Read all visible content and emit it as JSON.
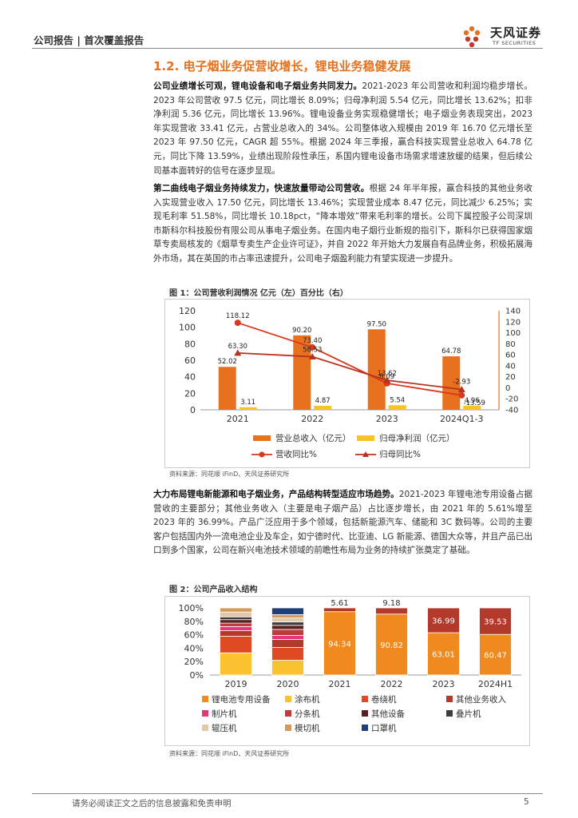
{
  "header": {
    "left": "公司报告 | 首次覆盖报告",
    "logo_cn": "天风证券",
    "logo_en": "TF SECURITIES"
  },
  "section_title": "1.2. 电子烟业务促营收增长，锂电业务稳健发展",
  "para1": {
    "lead": "公司业绩增长可观，锂电设备和电子烟业务共同发力。",
    "text": "2021-2023 年公司营收和利润均稳步增长。2023 年公司营收 97.5 亿元，同比增长 8.09%；归母净利润 5.54 亿元，同比增长 13.62%；扣非净利润 5.36 亿元，同比增长 13.96%。锂电设备业务实现稳健增长；电子烟业务表现突出，2023 年实现营收 33.41 亿元，占营业总收入的 34%。公司整体收入规模由 2019 年 16.70 亿元增长至 2023 年 97.50 亿元，CAGR 超 55%。根据 2024 年三季报，赢合科技实现营业总收入 64.78 亿元，同比下降 13.59%，业绩出现阶段性承压，系国内锂电设备市场需求增速放缓的结果，但后续公司基本面转好的信号在逐步显现。"
  },
  "para2": {
    "lead": "第二曲线电子烟业务持续发力，快速放量带动公司营收。",
    "text": "根据 24 年半年报，赢合科技的其他业务收入实现营业收入 17.50 亿元，同比增长 13.46%；实现营业成本 8.47 亿元，同比减少 6.25%；实现毛利率 51.58%，同比增长 10.18pct，“降本增效”带来毛利率的增长。公司下属控股子公司深圳市斯科尔科技股份有限公司从事电子烟业务。在国内电子烟行业新规的指引下，斯科尔已获得国家烟草专卖局核发的《烟草专卖生产企业许可证》，并自 2022 年开始大力发展自有品牌业务，积极拓展海外市场，其在英国的市占率迅速提升，公司电子烟盈利能力有望实现进一步提升。"
  },
  "fig1": {
    "title": "图 1：公司营收利润情况  亿元（左）百分比（右）",
    "source": "资料来源：同花顺 iFinD、天风证券研究所"
  },
  "para3": {
    "lead": "大力布局锂电新能源和电子烟业务，产品结构转型适应市场趋势。",
    "text": "2021-2023 年锂电池专用设备占据营收的主要部分；其他业务收入（主要是电子烟产品）占比逐步增长，由 2021 年的 5.61%增至 2023 年的 36.99%。产品广泛应用于多个领域，包括新能源汽车、储能和 3C 数码等。公司的主要客户包括国内外一流电池企业及车企，如宁德时代、比亚迪、LG 新能源、德国大众等，并且产品已出口到多个国家，公司在新兴电池技术领域的前瞻性布局为业务的持续扩张奠定了基础。"
  },
  "fig2": {
    "title": "图 2：公司产品收入结构",
    "source": "资料来源：同花顺 iFinD、天风证券研究所"
  },
  "chart_data": [
    {
      "type": "bar",
      "categories": [
        "2021",
        "2022",
        "2023",
        "2024Q1-3"
      ],
      "series": [
        {
          "name": "营业总收入（亿元）",
          "kind": "bar",
          "axis": "left",
          "color": "#e8711f",
          "values": [
            52.02,
            90.2,
            97.5,
            64.78
          ]
        },
        {
          "name": "归母净利润（亿元）",
          "kind": "bar",
          "axis": "left",
          "color": "#f7c325",
          "values": [
            3.11,
            4.87,
            5.54,
            4.96
          ]
        },
        {
          "name": "营收同比%",
          "kind": "line",
          "axis": "right",
          "color": "#d9391f",
          "marker": "circle",
          "values": [
            118.12,
            73.4,
            8.09,
            -13.59
          ]
        },
        {
          "name": "归母同比%",
          "kind": "line",
          "axis": "right",
          "color": "#b6341f",
          "marker": "triangle",
          "values": [
            63.3,
            56.53,
            13.62,
            -2.93
          ]
        }
      ],
      "y_left": {
        "min": 0,
        "max": 120,
        "ticks": [
          "0",
          "20",
          "40",
          "60",
          "80",
          "100",
          "120"
        ]
      },
      "y_right": {
        "min": -40,
        "max": 140,
        "ticks": [
          "-40",
          "-20",
          "0",
          "20",
          "40",
          "60",
          "80",
          "100",
          "120",
          "140"
        ]
      },
      "legend": "bottom"
    },
    {
      "type": "bar",
      "stacked": true,
      "percent": true,
      "categories": [
        "2019",
        "2020",
        "2021",
        "2022",
        "2023",
        "2024H1"
      ],
      "y_ticks": [
        "0%",
        "20%",
        "40%",
        "60%",
        "80%",
        "100%"
      ],
      "series": [
        {
          "name": "锂电池专用设备",
          "color": "#f08a1e",
          "values": [
            0,
            0,
            94.34,
            90.82,
            63.01,
            60.47
          ]
        },
        {
          "name": "涂布机",
          "color": "#f9c22e",
          "values": [
            32,
            22,
            0,
            0,
            0,
            0
          ]
        },
        {
          "name": "卷绕机",
          "color": "#e04a22",
          "values": [
            24,
            19,
            0,
            0,
            0,
            0
          ]
        },
        {
          "name": "其他业务收入",
          "color": "#b33a2a",
          "values": [
            8,
            12,
            5.61,
            9.18,
            36.99,
            39.53
          ]
        },
        {
          "name": "制片机",
          "color": "#e8357a",
          "values": [
            6,
            6,
            0,
            0,
            0,
            0
          ]
        },
        {
          "name": "分条机",
          "color": "#c23b3b",
          "values": [
            5,
            9,
            0,
            0,
            0,
            0
          ]
        },
        {
          "name": "其他设备",
          "color": "#5a1f1f",
          "values": [
            5,
            6,
            0,
            0,
            0,
            0
          ]
        },
        {
          "name": "叠片机",
          "color": "#3d3d3d",
          "values": [
            4,
            5,
            0,
            0,
            0,
            0
          ]
        },
        {
          "name": "辊压机",
          "color": "#e0c8a8",
          "values": [
            7,
            6,
            0,
            0,
            0,
            0
          ]
        },
        {
          "name": "模切机",
          "color": "#d29a5c",
          "values": [
            6,
            5,
            0,
            0,
            0,
            0
          ]
        },
        {
          "name": "口罩机",
          "color": "#1e3f7a",
          "values": [
            0,
            10,
            0,
            0,
            0,
            0
          ]
        }
      ],
      "labels": [
        {
          "category": "2021",
          "series": "锂电池专用设备",
          "text": "94.34"
        },
        {
          "category": "2022",
          "series": "锂电池专用设备",
          "text": "90.82"
        },
        {
          "category": "2023",
          "series": "锂电池专用设备",
          "text": "63.01"
        },
        {
          "category": "2024H1",
          "series": "锂电池专用设备",
          "text": "60.47"
        },
        {
          "category": "2021",
          "series": "其他业务收入",
          "text": "5.61"
        },
        {
          "category": "2022",
          "series": "其他业务收入",
          "text": "9.18"
        },
        {
          "category": "2023",
          "series": "其他业务收入",
          "text": "36.99"
        },
        {
          "category": "2024H1",
          "series": "其他业务收入",
          "text": "39.53"
        }
      ],
      "legend": "bottom"
    }
  ],
  "footer": {
    "left": "请务必阅读正文之后的信息披露和免责申明",
    "page": "5"
  }
}
